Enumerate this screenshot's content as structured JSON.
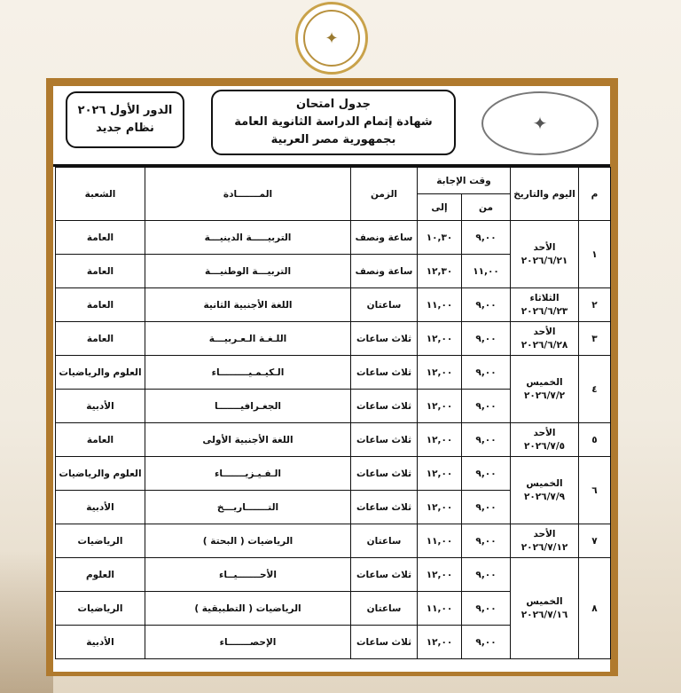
{
  "header": {
    "round": "الدور الأول ٢٠٢٦",
    "system": "نظام جديد",
    "title_line1": "جدول امتحان",
    "title_line2": "شهادة إتمام الدراسة الثانوية العامة",
    "title_line3": "بجمهورية مصر العربية",
    "logo_icon": "ministry-of-education-seal"
  },
  "table": {
    "headers": {
      "num": "م",
      "day": "اليوم والتاريخ",
      "answer_time": "وقت الإجابة",
      "from": "من",
      "to": "إلى",
      "duration": "الزمن",
      "subject": "المـــــــادة",
      "branch": "الشعبة"
    },
    "days": [
      {
        "num": "١",
        "day": "الأحد",
        "date": "٢٠٢٦/٦/٢١",
        "exams": [
          {
            "from": "٩,٠٠",
            "to": "١٠,٣٠",
            "duration": "ساعة ونصف",
            "subject": "التربيـــــة الدينيـــة",
            "branch": "العامة"
          },
          {
            "from": "١١,٠٠",
            "to": "١٢,٣٠",
            "duration": "ساعة ونصف",
            "subject": "التربيـــة الوطنيـــة",
            "branch": "العامة"
          }
        ]
      },
      {
        "num": "٢",
        "day": "الثلاثاء",
        "date": "٢٠٢٦/٦/٢٣",
        "exams": [
          {
            "from": "٩,٠٠",
            "to": "١١,٠٠",
            "duration": "ساعتان",
            "subject": "اللغة الأجنبية الثانية",
            "branch": "العامة"
          }
        ]
      },
      {
        "num": "٣",
        "day": "الأحد",
        "date": "٢٠٢٦/٦/٢٨",
        "exams": [
          {
            "from": "٩,٠٠",
            "to": "١٢,٠٠",
            "duration": "ثلاث ساعات",
            "subject": "اللـغـة الـعـربيـــة",
            "branch": "العامة"
          }
        ]
      },
      {
        "num": "٤",
        "day": "الخميس",
        "date": "٢٠٢٦/٧/٢",
        "exams": [
          {
            "from": "٩,٠٠",
            "to": "١٢,٠٠",
            "duration": "ثلاث ساعات",
            "subject": "الـكيـمـيـــــــــاء",
            "branch": "العلوم والرياضيات"
          },
          {
            "from": "٩,٠٠",
            "to": "١٢,٠٠",
            "duration": "ثلاث ساعات",
            "subject": "الجغـرافيـــــــا",
            "branch": "الأدبية"
          }
        ]
      },
      {
        "num": "٥",
        "day": "الأحد",
        "date": "٢٠٢٦/٧/٥",
        "exams": [
          {
            "from": "٩,٠٠",
            "to": "١٢,٠٠",
            "duration": "ثلاث ساعات",
            "subject": "اللغة الأجنبية الأولى",
            "branch": "العامة"
          }
        ]
      },
      {
        "num": "٦",
        "day": "الخميس",
        "date": "٢٠٢٦/٧/٩",
        "exams": [
          {
            "from": "٩,٠٠",
            "to": "١٢,٠٠",
            "duration": "ثلاث ساعات",
            "subject": "الـفـيـزيـــــــاء",
            "branch": "العلوم والرياضيات"
          },
          {
            "from": "٩,٠٠",
            "to": "١٢,٠٠",
            "duration": "ثلاث ساعات",
            "subject": "التـــــــاريـــخ",
            "branch": "الأدبية"
          }
        ]
      },
      {
        "num": "٧",
        "day": "الأحد",
        "date": "٢٠٢٦/٧/١٢",
        "exams": [
          {
            "from": "٩,٠٠",
            "to": "١١,٠٠",
            "duration": "ساعتان",
            "subject": "الرياضيات ( البحتة )",
            "branch": "الرياضيات"
          }
        ]
      },
      {
        "num": "٨",
        "day": "الخميس",
        "date": "٢٠٢٦/٧/١٦",
        "exams": [
          {
            "from": "٩,٠٠",
            "to": "١٢,٠٠",
            "duration": "ثلاث ساعات",
            "subject": "الأحـــــــيــاء",
            "branch": "العلوم"
          },
          {
            "from": "٩,٠٠",
            "to": "١١,٠٠",
            "duration": "ساعتان",
            "subject": "الرياضيات ( التطبيقية )",
            "branch": "الرياضيات"
          },
          {
            "from": "٩,٠٠",
            "to": "١٢,٠٠",
            "duration": "ثلاث ساعات",
            "subject": "الإحصـــــــاء",
            "branch": "الأدبية"
          }
        ]
      }
    ]
  }
}
